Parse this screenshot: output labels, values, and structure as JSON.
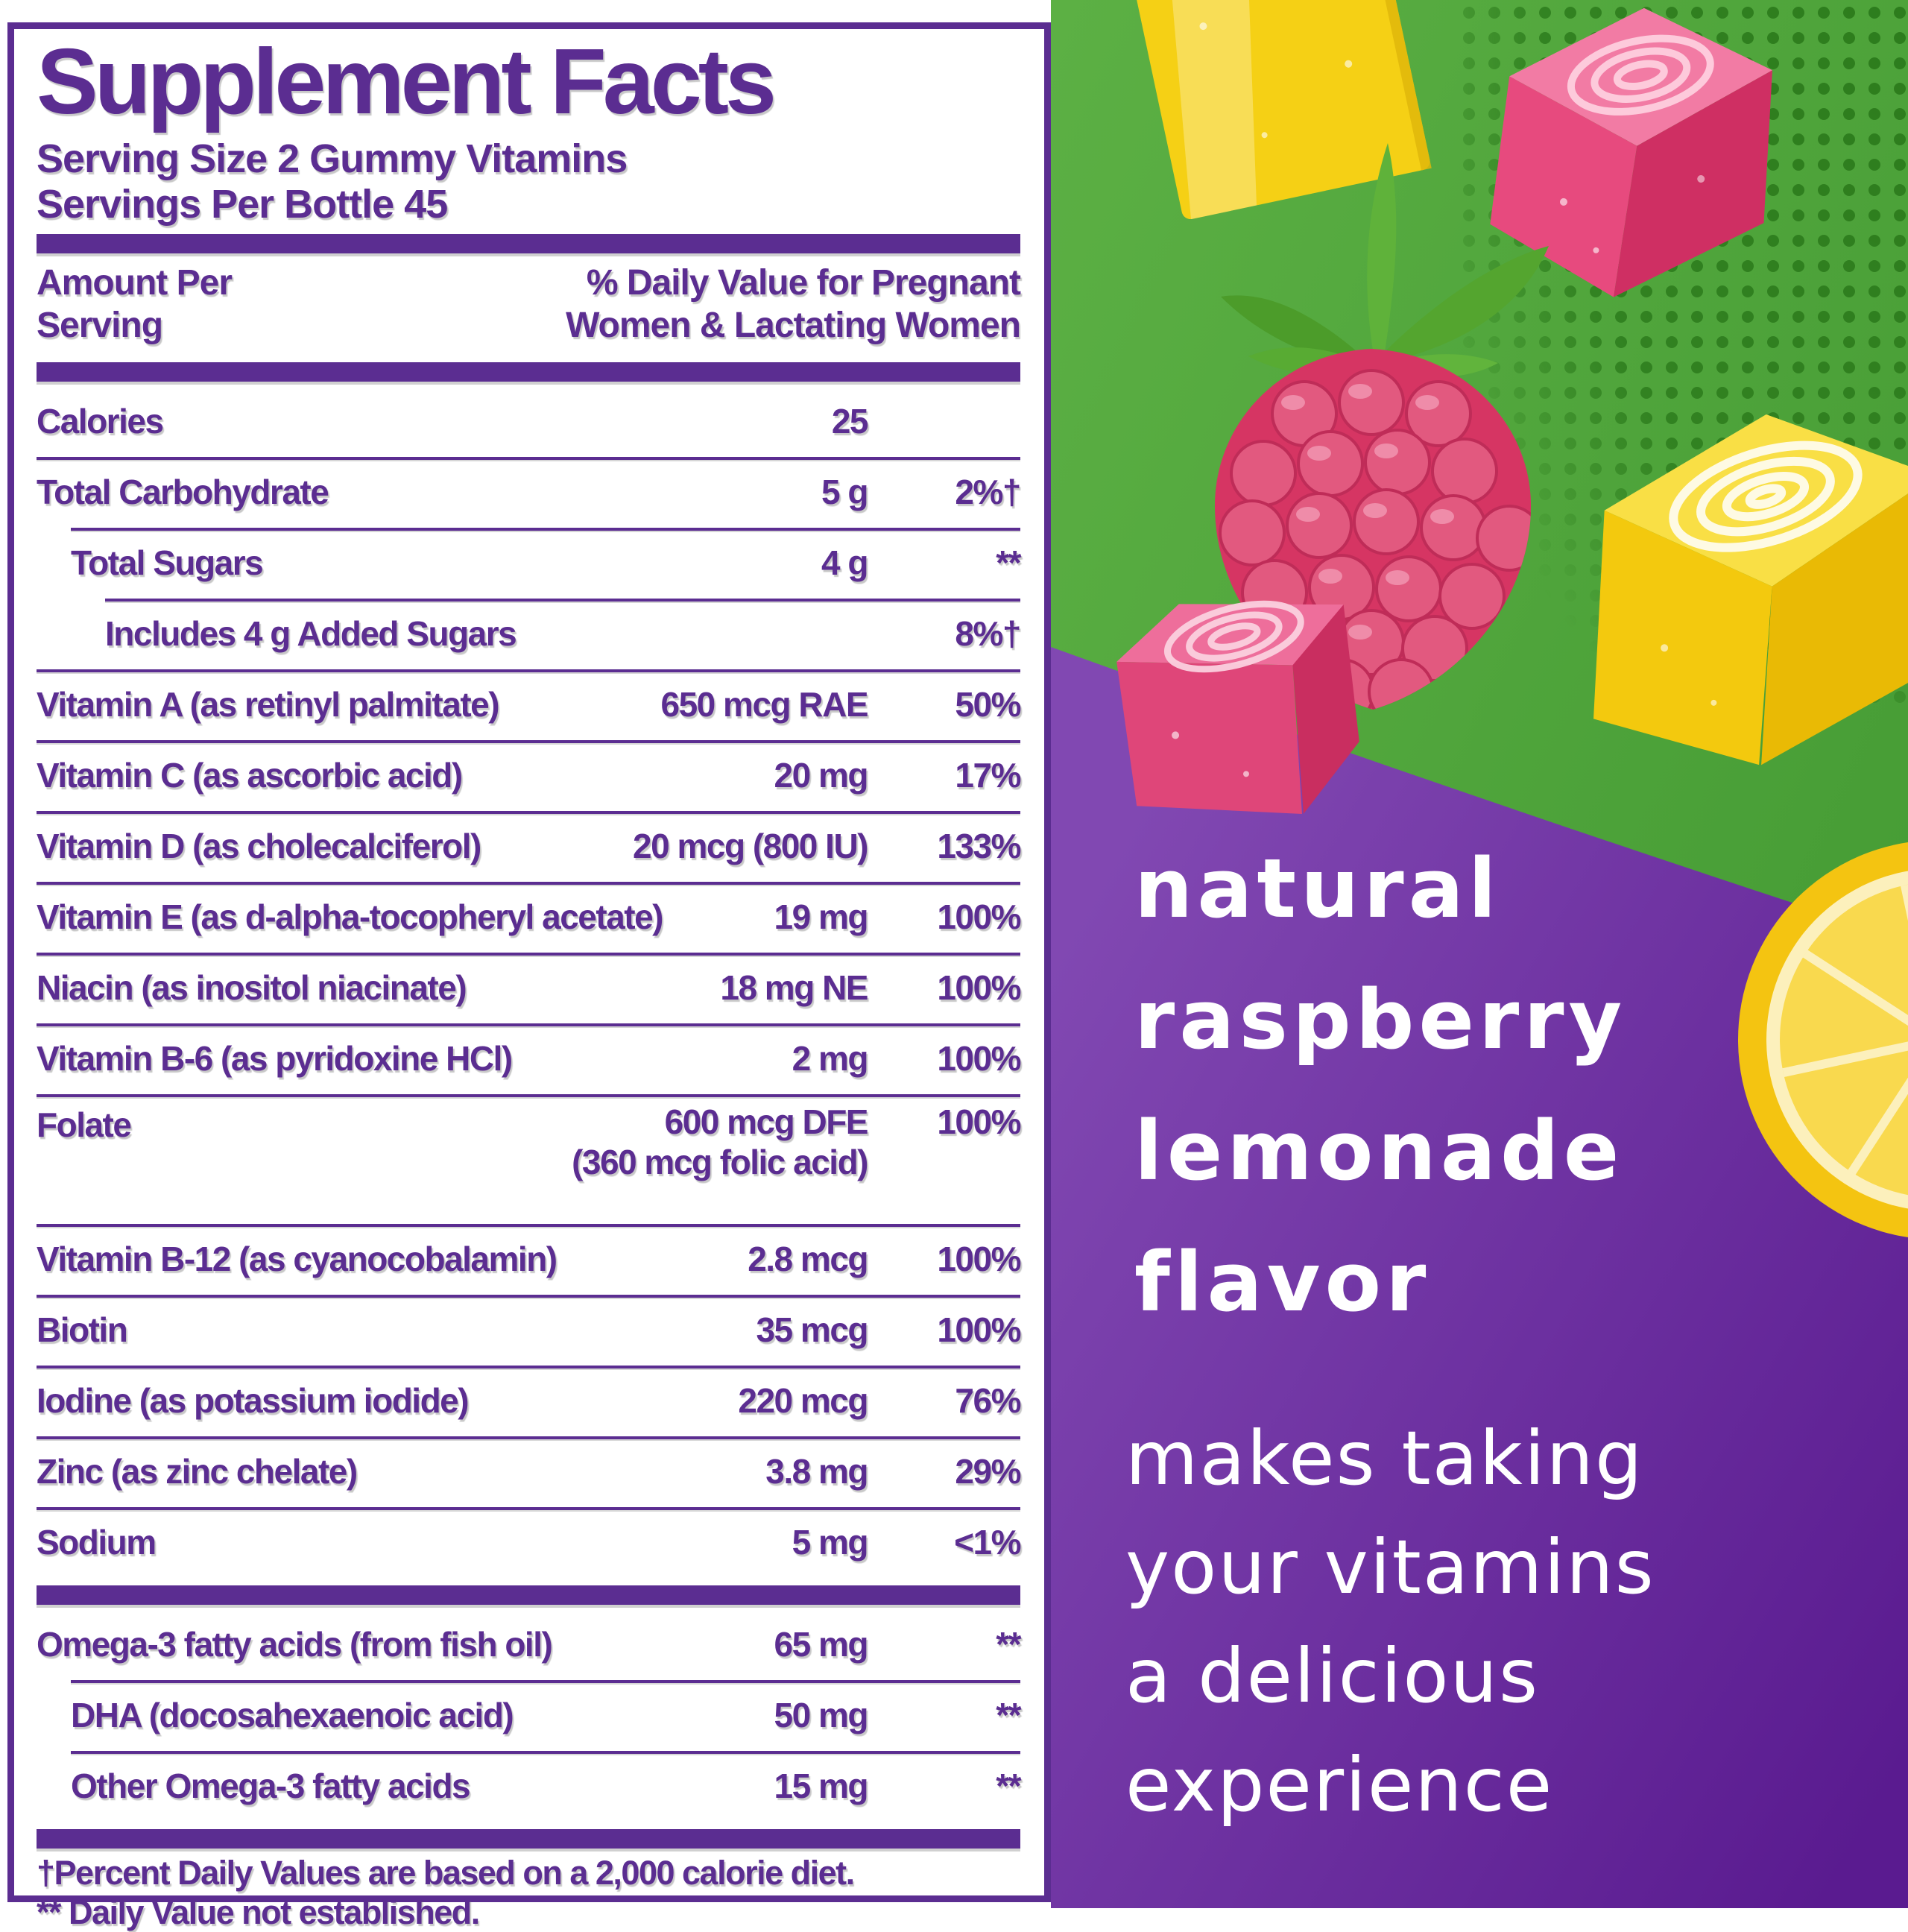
{
  "label": {
    "title": "Supplement Facts",
    "serving_size": "Serving Size 2 Gummy Vitamins",
    "servings_per_bottle": "Servings Per Bottle 45",
    "header": {
      "left_line1": "Amount Per",
      "left_line2": "Serving",
      "right_line1": "% Daily Value for Pregnant",
      "right_line2": "Women & Lactating Women"
    },
    "rows": [
      {
        "name": "Calories",
        "amount": "25",
        "dv": "",
        "indent": 0
      },
      {
        "name": "Total Carbohydrate",
        "amount": "5 g",
        "dv": "2%†",
        "indent": 0
      },
      {
        "name": "Total Sugars",
        "amount": "4 g",
        "dv": "**",
        "indent": 1
      },
      {
        "name": "Includes 4 g Added Sugars",
        "amount": "",
        "dv": "8%†",
        "indent": 2
      },
      {
        "name": "Vitamin A (as retinyl palmitate)",
        "amount": "650 mcg RAE",
        "dv": "50%",
        "indent": 0
      },
      {
        "name": "Vitamin C (as ascorbic acid)",
        "amount": "20 mg",
        "dv": "17%",
        "indent": 0
      },
      {
        "name": "Vitamin D (as cholecalciferol)",
        "amount": "20 mcg (800 IU)",
        "dv": "133%",
        "indent": 0
      },
      {
        "name": "Vitamin E (as d-alpha-tocopheryl acetate)",
        "amount": "19 mg",
        "dv": "100%",
        "indent": 0
      },
      {
        "name": "Niacin (as inositol niacinate)",
        "amount": "18 mg NE",
        "dv": "100%",
        "indent": 0
      },
      {
        "name": "Vitamin B-6 (as pyridoxine HCl)",
        "amount": "2 mg",
        "dv": "100%",
        "indent": 0
      },
      {
        "name": "Folate",
        "amount": "600 mcg DFE",
        "amount_line2": "(360 mcg folic acid)",
        "dv": "100%",
        "indent": 0
      },
      {
        "name": "Vitamin B-12 (as cyanocobalamin)",
        "amount": "2.8 mcg",
        "dv": "100%",
        "indent": 0
      },
      {
        "name": "Biotin",
        "amount": "35 mcg",
        "dv": "100%",
        "indent": 0
      },
      {
        "name": "Iodine (as potassium iodide)",
        "amount": "220 mcg",
        "dv": "76%",
        "indent": 0
      },
      {
        "name": "Zinc (as zinc chelate)",
        "amount": "3.8 mg",
        "dv": "29%",
        "indent": 0
      },
      {
        "name": "Sodium",
        "amount": "5 mg",
        "dv": "<1%",
        "indent": 0
      },
      {
        "name": "Omega-3 fatty acids (from fish oil)",
        "amount": "65 mg",
        "dv": "**",
        "indent": 0
      },
      {
        "name": "DHA (docosahexaenoic acid)",
        "amount": "50 mg",
        "dv": "**",
        "indent": 1
      },
      {
        "name": "Other Omega-3 fatty acids",
        "amount": "15 mg",
        "dv": "**",
        "indent": 1
      }
    ],
    "footnotes": [
      "†Percent Daily Values are based on a 2,000 calorie diet.",
      "** Daily Value not established."
    ]
  },
  "panel": {
    "flavor_lines": [
      "natural",
      "raspberry",
      "lemonade",
      "flavor"
    ],
    "tagline_lines": [
      "makes taking",
      "your vitamins",
      "a delicious",
      "experience"
    ],
    "art_items": [
      "yellow-gummy-cube",
      "pink-gummy-cube",
      "raspberry",
      "pink-swirl-gummy",
      "yellow-swirl-gummy",
      "lemon-slice"
    ],
    "colors": {
      "label_purple": "#5b2d91",
      "panel_green": "#4ea53c",
      "halftone_dot_green": "#2d7c1d",
      "panel_purple_light": "#8148b2",
      "panel_purple_dark": "#5a1b90",
      "text_white": "#ffffff",
      "gummy_yellow": "#f5d015",
      "gummy_pink": "#e74a7e",
      "raspberry_red": "#d63563",
      "lemon_yellow": "#f4c411"
    }
  }
}
